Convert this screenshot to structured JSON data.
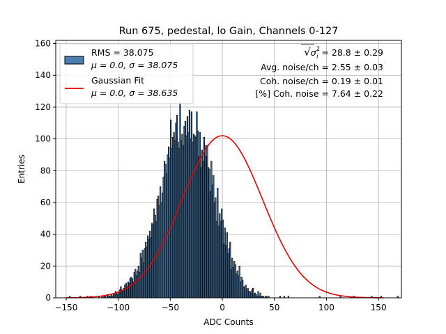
{
  "chart_data": {
    "type": "bar",
    "title": "Run 675, pedestal, lo Gain, Channels 0-127",
    "xlabel": "ADC Counts",
    "ylabel": "Entries",
    "xlim": [
      -160,
      172
    ],
    "ylim": [
      0,
      162
    ],
    "xticks": [
      -150,
      -100,
      -50,
      0,
      50,
      100,
      150
    ],
    "yticks": [
      0,
      20,
      40,
      60,
      80,
      100,
      120,
      140,
      160
    ],
    "grid": true,
    "bar_color": "#4a7eb0",
    "edge_color": "#000000",
    "fit_color": "#e00000",
    "legend": {
      "location": "top-left",
      "entries": [
        {
          "kind": "patch",
          "line1": "RMS = 38.075",
          "line2": "μ = 0.0, σ = 38.075"
        },
        {
          "kind": "line",
          "line1": "Gaussian Fit",
          "line2": "μ = 0.0, σ = 38.635"
        }
      ]
    },
    "annotations": {
      "sqrt_symbol": "√",
      "sigma_symbol": "σ",
      "sigma_subscript": "i",
      "sigma_superscript": "2",
      "line1_value": "= 28.8 ± 0.29",
      "line2": "Avg. noise/ch = 2.55 ± 0.03",
      "line3": "Coh. noise/ch = 0.19 ± 0.01",
      "line4": "[%] Coh. noise = 7.64 ± 0.22"
    },
    "fit": {
      "amplitude": 102,
      "mu": 0.0,
      "sigma": 38.635
    },
    "bins": {
      "start": -147,
      "width": 1,
      "values": [
        1,
        0,
        0,
        0,
        0,
        0,
        0,
        0,
        0,
        0,
        1,
        0,
        0,
        0,
        0,
        0,
        0,
        1,
        0,
        0,
        1,
        0,
        0,
        0,
        0,
        0,
        0,
        0,
        1,
        0,
        0,
        1,
        0,
        1,
        1,
        0,
        2,
        2,
        1,
        1,
        2,
        1,
        2,
        3,
        4,
        3,
        2,
        4,
        5,
        7,
        5,
        5,
        6,
        8,
        9,
        7,
        10,
        9,
        12,
        13,
        12,
        10,
        16,
        18,
        14,
        17,
        20,
        16,
        28,
        25,
        30,
        22,
        31,
        35,
        32,
        39,
        37,
        42,
        38,
        47,
        46,
        56,
        52,
        48,
        62,
        64,
        58,
        70,
        60,
        66,
        76,
        86,
        84,
        78,
        90,
        95,
        88,
        112,
        94,
        101,
        104,
        99,
        110,
        115,
        98,
        94,
        123,
        99,
        103,
        96,
        108,
        111,
        102,
        114,
        104,
        118,
        100,
        117,
        98,
        103,
        102,
        101,
        117,
        105,
        89,
        104,
        82,
        93,
        86,
        101,
        96,
        89,
        96,
        82,
        81,
        67,
        86,
        71,
        77,
        60,
        63,
        48,
        69,
        45,
        53,
        48,
        56,
        49,
        34,
        44,
        33,
        41,
        28,
        31,
        35,
        18,
        25,
        19,
        23,
        21,
        15,
        17,
        14,
        20,
        10,
        13,
        11,
        7,
        7,
        8,
        5,
        6,
        4,
        4,
        3,
        5,
        6,
        2,
        3,
        2,
        1,
        4,
        1,
        3,
        1,
        1,
        1,
        0,
        1,
        1,
        0,
        1,
        0,
        0,
        0,
        0,
        0,
        0,
        0,
        0,
        0,
        0,
        1,
        0,
        0,
        0,
        1,
        0,
        0,
        0,
        1,
        0,
        0,
        0,
        0,
        0,
        0,
        0,
        0,
        0,
        0,
        0,
        0,
        0,
        0,
        0,
        0,
        0,
        0,
        0,
        0,
        0,
        0,
        0,
        0,
        0,
        0,
        0,
        0,
        0,
        1,
        0,
        0,
        0,
        0,
        0,
        0,
        0,
        0,
        0,
        0,
        0,
        0,
        0,
        0,
        0,
        0,
        0,
        0,
        0,
        1,
        0,
        0,
        0,
        0,
        0,
        0,
        0,
        0,
        0,
        0,
        0,
        0,
        1,
        0,
        0,
        0,
        0,
        0,
        0,
        0,
        0,
        0,
        0,
        0,
        0,
        0,
        0,
        0,
        0,
        1,
        0,
        0,
        0,
        0,
        0,
        0,
        0,
        0,
        1,
        0,
        0,
        0,
        0,
        0,
        0,
        0,
        0,
        0,
        0,
        0,
        0,
        0,
        0,
        0,
        1
      ]
    }
  }
}
